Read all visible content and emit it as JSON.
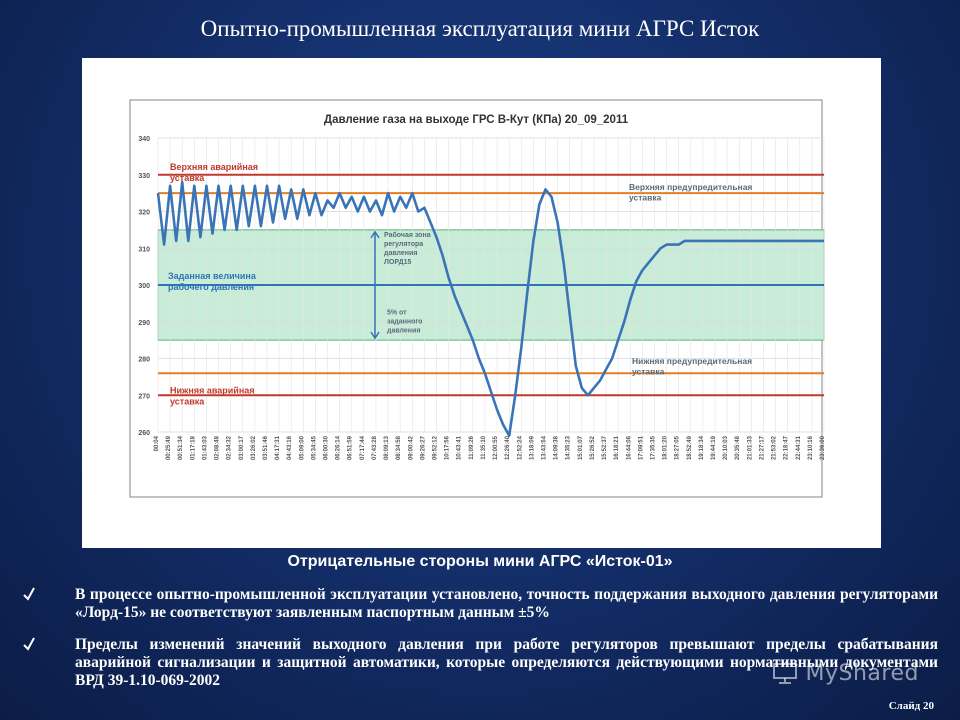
{
  "slide": {
    "title": "Опытно-промышленная эксплуатация мини АГРС Исток",
    "subheading": "Отрицательные стороны мини АГРС «Исток-01»",
    "bullets": [
      "В процессе опытно-промышленной эксплуатации  установлено, точность поддержания выходного давления регуляторами «Лорд-15» не соответствуют заявленным паспортным данным  ±5%",
      "Пределы изменений значений выходного давления при работе регуляторов превышают пределы срабатывания аварийной сигнализации и защитной автоматики, которые определяются действующими нормативными документами ВРД 39-1.10-069-2002"
    ],
    "slide_number": "Слайд  20",
    "watermark": "MyShared"
  },
  "chart_data": {
    "type": "line",
    "title": "Давление газа на выходе ГРС В-Кут (КПа) 20_09_2011",
    "ylim": [
      260,
      340
    ],
    "yticks": [
      260,
      270,
      280,
      290,
      300,
      310,
      320,
      330,
      340
    ],
    "xticks": [
      "00:04",
      "00:25:49",
      "00:51:34",
      "01:17:18",
      "01:43:03",
      "02:08:48",
      "02:34:32",
      "03:00:17",
      "03:26:02",
      "03:51:46",
      "04:17:31",
      "04:43:16",
      "05:09:00",
      "05:34:45",
      "06:00:30",
      "06:26:14",
      "06:51:59",
      "07:17:44",
      "07:43:28",
      "08:09:13",
      "08:34:58",
      "09:00:42",
      "09:26:27",
      "09:52:12",
      "10:17:56",
      "10:43:41",
      "11:09:26",
      "11:35:10",
      "12:00:55",
      "12:26:40",
      "12:52:24",
      "13:18:09",
      "13:43:54",
      "14:09:38",
      "14:35:23",
      "15:01:07",
      "15:26:52",
      "15:52:37",
      "16:18:21",
      "16:44:06",
      "17:09:51",
      "17:35:35",
      "18:01:20",
      "18:27:05",
      "18:52:49",
      "19:18:34",
      "19:44:19",
      "20:10:03",
      "20:35:48",
      "21:01:33",
      "21:27:17",
      "21:53:02",
      "22:18:47",
      "22:44:31",
      "23:10:16",
      "23:36:00"
    ],
    "grid": true,
    "reference_lines": [
      {
        "label": "Верхняя аварийная уставка",
        "value": 330,
        "color": "#c0392b"
      },
      {
        "label": "Верхняя предупредительная уставка",
        "value": 325,
        "color": "#e67e22"
      },
      {
        "label": "Заданная величина рабочего давления",
        "value": 300,
        "color": "#2e75b6"
      },
      {
        "label": "Нижняя предупредительная уставка",
        "value": 276,
        "color": "#e67e22"
      },
      {
        "label": "Нижняя аварийная уставка",
        "value": 270,
        "color": "#c0392b"
      }
    ],
    "band": {
      "label": "Рабочая зона регулятора давления ЛОРД15",
      "from": 285,
      "to": 315,
      "color": "#c9ecd8"
    },
    "band_note": "5% от заданного давления",
    "series": [
      {
        "color": "#3a74b7",
        "x": [
          0,
          0.5,
          1,
          1.5,
          2,
          2.5,
          3,
          3.5,
          4,
          4.5,
          5,
          5.5,
          6,
          6.5,
          7,
          7.5,
          8,
          8.5,
          9,
          9.5,
          10,
          10.5,
          11,
          11.5,
          12,
          12.5,
          13,
          13.5,
          14,
          14.5,
          15,
          15.5,
          16,
          16.5,
          17,
          17.5,
          18,
          18.5,
          19,
          19.5,
          20,
          20.5,
          21,
          21.5,
          22,
          22.5,
          23,
          23.5,
          24,
          24.5,
          25,
          25.5,
          26,
          26.5,
          27,
          27.5,
          28,
          28.5,
          29,
          29.5,
          30,
          30.5,
          31,
          31.5,
          32,
          32.5,
          33,
          33.5,
          34,
          34.5,
          35,
          35.5,
          36,
          36.5,
          37,
          37.5,
          38,
          38.5,
          39,
          39.5,
          40,
          40.5,
          41,
          41.5,
          42,
          42.5,
          43,
          43.5,
          44,
          44.5,
          45,
          45.5,
          46,
          46.5,
          47,
          47.5,
          48,
          48.5,
          49,
          49.5,
          50,
          50.5,
          51,
          51.5,
          52,
          52.5,
          53,
          53.5,
          54,
          54.5,
          55
        ],
        "y": [
          325,
          311,
          327,
          312,
          328,
          312,
          327,
          313,
          327,
          314,
          327,
          315,
          327,
          315,
          327,
          316,
          327,
          316,
          327,
          317,
          327,
          318,
          326,
          318,
          326,
          319,
          325,
          319,
          323,
          321,
          325,
          321,
          324,
          320,
          324,
          320,
          323,
          319,
          325,
          320,
          324,
          321,
          325,
          320,
          321,
          317,
          313,
          308,
          302,
          297,
          293,
          289,
          285,
          280,
          276,
          271,
          266,
          262,
          259,
          270,
          283,
          298,
          312,
          322,
          326,
          324,
          317,
          306,
          292,
          278,
          272,
          270,
          272,
          274,
          277,
          280,
          285,
          290,
          296,
          301,
          304,
          306,
          308,
          310,
          311,
          311,
          311,
          312,
          312,
          312,
          312,
          312,
          312,
          312,
          312,
          312,
          312,
          312,
          312,
          312,
          312,
          312,
          312,
          312,
          312,
          312,
          312,
          312,
          312,
          312,
          312
        ]
      }
    ]
  }
}
